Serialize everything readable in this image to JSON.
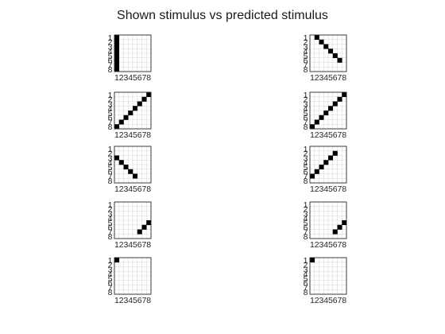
{
  "title": "Shown stimulus vs predicted stimulus",
  "chart_data": {
    "type": "heatmap",
    "title": "Shown stimulus vs predicted stimulus",
    "grid_size": 8,
    "x_tick_labels": [
      "1",
      "2",
      "3",
      "4",
      "5",
      "6",
      "7",
      "8"
    ],
    "y_tick_labels": [
      "1",
      "2",
      "3",
      "4",
      "5",
      "6",
      "7",
      "8"
    ],
    "cell_colors": {
      "filled": "#000000",
      "empty": "#ffffff",
      "grid": "#d9d9d9",
      "frame": "#262626"
    },
    "panels": [
      {
        "row": 1,
        "column": "left",
        "filled_cells": [
          [
            1,
            1
          ],
          [
            1,
            2
          ],
          [
            1,
            3
          ],
          [
            1,
            4
          ],
          [
            1,
            5
          ],
          [
            1,
            6
          ],
          [
            1,
            7
          ],
          [
            1,
            8
          ]
        ]
      },
      {
        "row": 1,
        "column": "right",
        "filled_cells": [
          [
            2,
            1
          ],
          [
            3,
            2
          ],
          [
            4,
            3
          ],
          [
            5,
            4
          ],
          [
            6,
            5
          ],
          [
            7,
            6
          ]
        ]
      },
      {
        "row": 2,
        "column": "left",
        "filled_cells": [
          [
            1,
            8
          ],
          [
            2,
            7
          ],
          [
            3,
            6
          ],
          [
            4,
            5
          ],
          [
            5,
            4
          ],
          [
            6,
            3
          ],
          [
            7,
            2
          ],
          [
            8,
            1
          ]
        ]
      },
      {
        "row": 2,
        "column": "right",
        "filled_cells": [
          [
            1,
            8
          ],
          [
            2,
            7
          ],
          [
            3,
            6
          ],
          [
            4,
            5
          ],
          [
            5,
            4
          ],
          [
            6,
            3
          ],
          [
            7,
            2
          ],
          [
            8,
            1
          ]
        ]
      },
      {
        "row": 3,
        "column": "left",
        "filled_cells": [
          [
            1,
            3
          ],
          [
            2,
            4
          ],
          [
            3,
            5
          ],
          [
            4,
            6
          ],
          [
            5,
            7
          ]
        ]
      },
      {
        "row": 3,
        "column": "right",
        "filled_cells": [
          [
            1,
            7
          ],
          [
            2,
            6
          ],
          [
            3,
            5
          ],
          [
            4,
            4
          ],
          [
            5,
            3
          ],
          [
            6,
            2
          ]
        ]
      },
      {
        "row": 4,
        "column": "left",
        "filled_cells": [
          [
            6,
            7
          ],
          [
            7,
            6
          ],
          [
            8,
            5
          ]
        ]
      },
      {
        "row": 4,
        "column": "right",
        "filled_cells": [
          [
            6,
            7
          ],
          [
            7,
            6
          ],
          [
            8,
            5
          ]
        ]
      },
      {
        "row": 5,
        "column": "left",
        "filled_cells": [
          [
            1,
            1
          ]
        ]
      },
      {
        "row": 5,
        "column": "right",
        "filled_cells": [
          [
            1,
            1
          ]
        ]
      }
    ]
  }
}
